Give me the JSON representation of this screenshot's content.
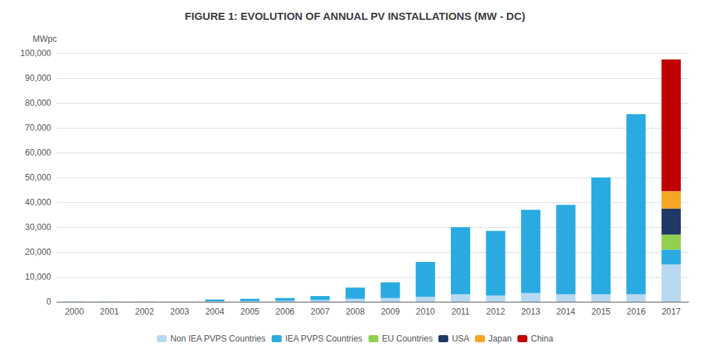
{
  "chart_data": {
    "type": "bar",
    "stacked": true,
    "title": "FIGURE 1: EVOLUTION OF ANNUAL PV INSTALLATIONS (MW - DC)",
    "ylabel": "MWpc",
    "categories": [
      "2000",
      "2001",
      "2002",
      "2003",
      "2004",
      "2005",
      "2006",
      "2007",
      "2008",
      "2009",
      "2010",
      "2011",
      "2012",
      "2013",
      "2014",
      "2015",
      "2016",
      "2017"
    ],
    "series": [
      {
        "name": "Non IEA PVPS Countries",
        "color": "#b8d9f0",
        "values": [
          50,
          50,
          50,
          50,
          200,
          300,
          400,
          700,
          1200,
          1500,
          2000,
          3000,
          2500,
          3500,
          3000,
          3000,
          3000,
          15000
        ]
      },
      {
        "name": "IEA PVPS Countries",
        "color": "#29abe2",
        "values": [
          50,
          50,
          50,
          50,
          700,
          900,
          1100,
          1600,
          4500,
          6300,
          14000,
          27000,
          26000,
          33500,
          36000,
          47000,
          72500,
          6000
        ]
      },
      {
        "name": "EU Countries",
        "color": "#92d050",
        "values": [
          0,
          0,
          0,
          0,
          0,
          0,
          0,
          0,
          0,
          0,
          0,
          0,
          0,
          0,
          0,
          0,
          0,
          6000
        ]
      },
      {
        "name": "USA",
        "color": "#1f3864",
        "values": [
          0,
          0,
          0,
          0,
          0,
          0,
          0,
          0,
          0,
          0,
          0,
          0,
          0,
          0,
          0,
          0,
          0,
          10500
        ]
      },
      {
        "name": "Japan",
        "color": "#f5a623",
        "values": [
          0,
          0,
          0,
          0,
          0,
          0,
          0,
          0,
          0,
          0,
          0,
          0,
          0,
          0,
          0,
          0,
          0,
          7000
        ]
      },
      {
        "name": "China",
        "color": "#c00000",
        "values": [
          0,
          0,
          0,
          0,
          0,
          0,
          0,
          0,
          0,
          0,
          0,
          0,
          0,
          0,
          0,
          0,
          0,
          53000
        ]
      }
    ],
    "ylim": [
      0,
      100000
    ],
    "yticks": [
      0,
      {
        "value": 10000,
        "label": "10,000"
      },
      {
        "value": 20000,
        "label": "20,000"
      },
      {
        "value": 30000,
        "label": "30,000"
      },
      {
        "value": 40000,
        "label": "40,000"
      },
      {
        "value": 50000,
        "label": "50,000"
      },
      {
        "value": 60000,
        "label": "60,000"
      },
      {
        "value": 70000,
        "label": "70,000"
      },
      {
        "value": 80000,
        "label": "80,000"
      },
      {
        "value": 90000,
        "label": "90,000"
      },
      {
        "value": 100000,
        "label": "100,000"
      }
    ],
    "grid": true,
    "legend": "bottom"
  }
}
